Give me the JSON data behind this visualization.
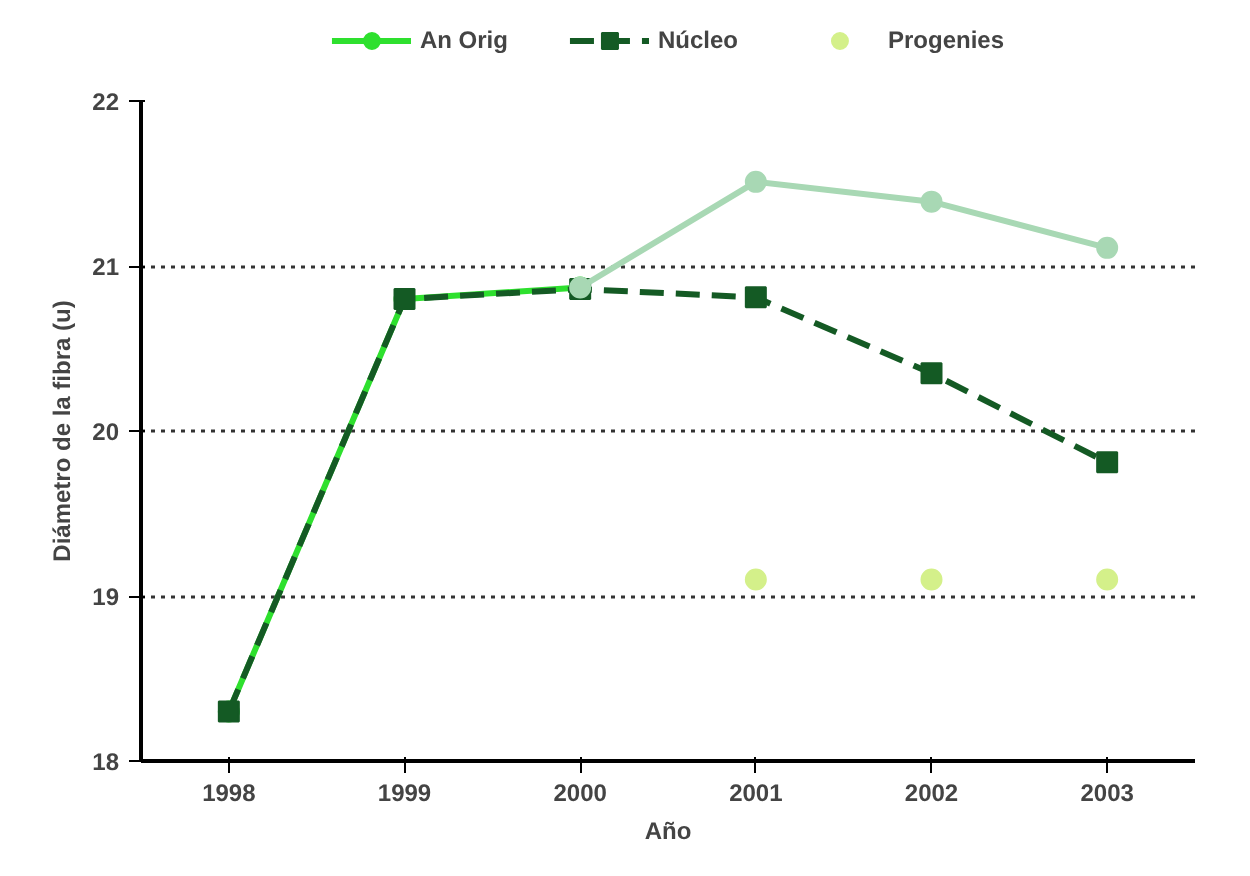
{
  "chart_data": {
    "type": "line",
    "xlabel": "Año",
    "ylabel": "Diámetro de la fibra (u)",
    "categories": [
      "1998",
      "1999",
      "2000",
      "2001",
      "2002",
      "2003"
    ],
    "series": [
      {
        "name": "An Orig",
        "color": "#2ee02e",
        "values": [
          18.3,
          20.8,
          20.87,
          null,
          null,
          null
        ],
        "marker": "circle",
        "line_style": "solid"
      },
      {
        "name": "Núcleo",
        "color": "#145a24",
        "values": [
          18.3,
          20.8,
          20.86,
          20.81,
          20.35,
          19.81
        ],
        "marker": "square",
        "line_style": "dashed"
      },
      {
        "name": "Progenies",
        "type": "scatter",
        "color": "#d4f08a",
        "values": [
          null,
          null,
          null,
          19.1,
          19.1,
          19.1
        ],
        "marker": "circle"
      },
      {
        "color": "#a8d8b4",
        "values": [
          null,
          null,
          20.87,
          21.51,
          21.39,
          21.11
        ],
        "marker": "circle",
        "line_style": "solid"
      }
    ],
    "ylim": [
      18,
      22
    ],
    "yticks": [
      18,
      19,
      20,
      21,
      22
    ],
    "grid": "y",
    "legend": "top"
  }
}
